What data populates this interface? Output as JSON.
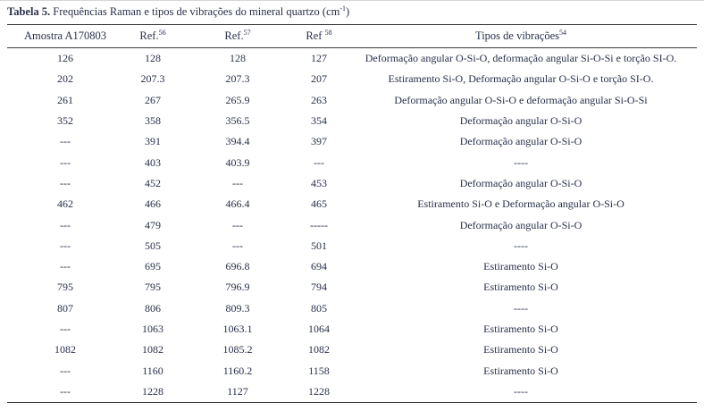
{
  "title": {
    "bold": "Tabela 5.",
    "rest": " Frequências Raman e tipos de vibrações do mineral quartzo (cm",
    "sup": "-1",
    "end": ")"
  },
  "table": {
    "columns": [
      {
        "label": "Amostra A170803",
        "sup": ""
      },
      {
        "label": "Ref.",
        "sup": "56"
      },
      {
        "label": "Ref.",
        "sup": "57"
      },
      {
        "label": "Ref ",
        "sup": "58"
      },
      {
        "label": "Tipos de vibrações",
        "sup": "54"
      }
    ],
    "rows": [
      [
        "126",
        "128",
        "128",
        "127",
        "Deformação angular O-Si-O, deformação angular Si-O-Si e torção SI-O."
      ],
      [
        "202",
        "207.3",
        "207.3",
        "207",
        "Estiramento Si-O, Deformação angular O-Si-O e torção SI-O."
      ],
      [
        "261",
        "267",
        "265.9",
        "263",
        "Deformação angular O-Si-O e deformação angular Si-O-Si"
      ],
      [
        "352",
        "358",
        "356.5",
        "354",
        "Deformação angular O-Si-O"
      ],
      [
        "---",
        "391",
        "394.4",
        "397",
        "Deformação angular O-Si-O"
      ],
      [
        "---",
        "403",
        "403.9",
        "---",
        "----"
      ],
      [
        "---",
        "452",
        "---",
        "453",
        "Deformação angular O-Si-O"
      ],
      [
        "462",
        "466",
        "466.4",
        "465",
        "Estiramento Si-O e Deformação angular O-Si-O"
      ],
      [
        "---",
        "479",
        "---",
        "-----",
        "Deformação angular O-Si-O"
      ],
      [
        "---",
        "505",
        "---",
        "501",
        "----"
      ],
      [
        "---",
        "695",
        "696.8",
        "694",
        "Estiramento Si-O"
      ],
      [
        "795",
        "795",
        "796.9",
        "794",
        "Estiramento Si-O"
      ],
      [
        "807",
        "806",
        "809.3",
        "805",
        "----"
      ],
      [
        "---",
        "1063",
        "1063.1",
        "1064",
        "Estiramento Si-O"
      ],
      [
        "1082",
        "1082",
        "1085.2",
        "1082",
        "Estiramento Si-O"
      ],
      [
        "---",
        "1160",
        "1160.2",
        "1158",
        "Estiramento Si-O"
      ],
      [
        "---",
        "1228",
        "1127",
        "1228",
        "----"
      ]
    ]
  },
  "colors": {
    "text": "#28304a",
    "rule": "#3a3a3a",
    "background": "#ffffff"
  }
}
